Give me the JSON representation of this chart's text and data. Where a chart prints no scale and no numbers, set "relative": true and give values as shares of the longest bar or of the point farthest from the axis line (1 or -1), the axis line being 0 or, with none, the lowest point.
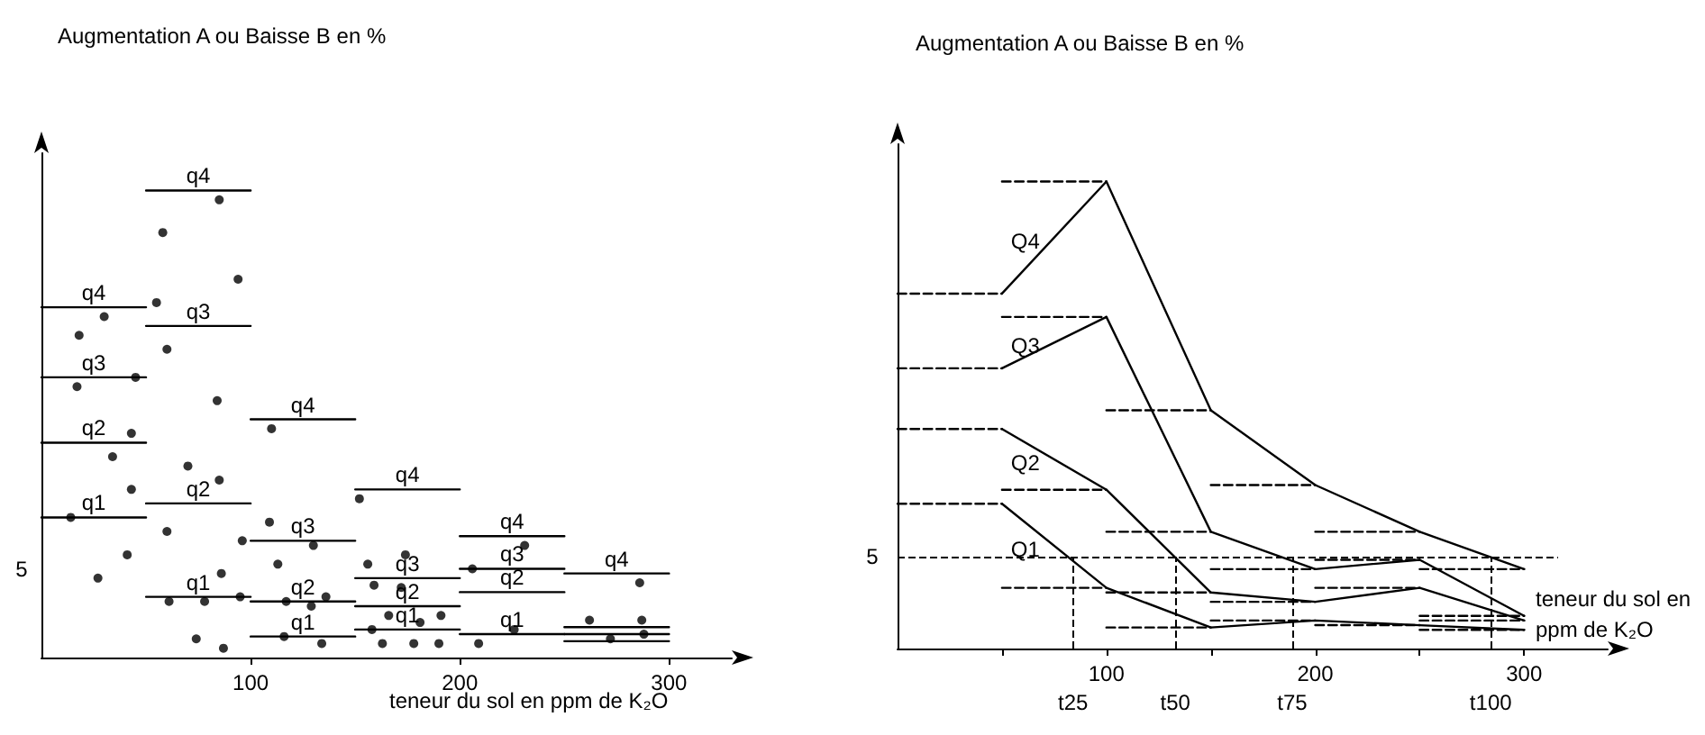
{
  "chart_data": [
    {
      "type": "line",
      "ylabel": "Augmentation A ou Baisse B en %",
      "xlabel": "teneur du sol en ppm de K₂O",
      "relative": true,
      "xlim": [
        0,
        330
      ],
      "xticks": [
        100,
        200,
        300
      ],
      "line_style": "solid",
      "marker": "none",
      "annotations": [
        "5"
      ],
      "series": [
        {
          "name": "q1",
          "color": "#000000",
          "x": [
            0,
            50,
            50,
            100,
            100,
            150,
            150,
            200,
            200,
            250,
            250,
            300
          ],
          "values": [
            0.3,
            0.3,
            0.13,
            0.13,
            0.045,
            0.045,
            0.06,
            0.06,
            0.05,
            0.05,
            0.035,
            0.035
          ]
        },
        {
          "name": "q2",
          "color": "#000000",
          "x": [
            0,
            50,
            50,
            100,
            100,
            150,
            150,
            200,
            200,
            250,
            250,
            300
          ],
          "values": [
            0.46,
            0.46,
            0.33,
            0.33,
            0.12,
            0.12,
            0.11,
            0.11,
            0.14,
            0.14,
            0.05,
            0.05
          ]
        },
        {
          "name": "q3",
          "color": "#000000",
          "x": [
            0,
            50,
            50,
            100,
            100,
            150,
            150,
            200,
            200,
            250,
            250,
            300
          ],
          "values": [
            0.6,
            0.6,
            0.71,
            0.71,
            0.25,
            0.25,
            0.17,
            0.17,
            0.19,
            0.19,
            0.065,
            0.065
          ]
        },
        {
          "name": "q4",
          "color": "#000000",
          "x": [
            0,
            50,
            50,
            100,
            100,
            150,
            150,
            200,
            200,
            250,
            250,
            300
          ],
          "values": [
            0.75,
            0.75,
            1.0,
            1.0,
            0.51,
            0.51,
            0.36,
            0.36,
            0.26,
            0.26,
            0.18,
            0.18
          ]
        },
        {
          "type": "scatter",
          "color": "#000000",
          "marker": "circle",
          "x": [
            85,
            58,
            94,
            55,
            30,
            18,
            60,
            45,
            17,
            84,
            110,
            43,
            34,
            70,
            85,
            43,
            152,
            109,
            60,
            14,
            130,
            96,
            231,
            41,
            156,
            174,
            113,
            206,
            27,
            86,
            286,
            159,
            172,
            136,
            95,
            61,
            78,
            117,
            129,
            166,
            181,
            191,
            262,
            287,
            158,
            226,
            116,
            74,
            134,
            163,
            178,
            190,
            209,
            87,
            272,
            288
          ],
          "values": [
            0.98,
            0.91,
            0.81,
            0.76,
            0.73,
            0.69,
            0.66,
            0.6,
            0.58,
            0.55,
            0.49,
            0.48,
            0.43,
            0.41,
            0.38,
            0.36,
            0.34,
            0.29,
            0.27,
            0.3,
            0.24,
            0.25,
            0.24,
            0.22,
            0.2,
            0.22,
            0.2,
            0.19,
            0.17,
            0.18,
            0.16,
            0.155,
            0.15,
            0.13,
            0.13,
            0.12,
            0.12,
            0.12,
            0.11,
            0.09,
            0.075,
            0.09,
            0.08,
            0.08,
            0.06,
            0.06,
            0.045,
            0.04,
            0.03,
            0.03,
            0.03,
            0.03,
            0.03,
            0.02,
            0.04,
            0.05
          ]
        }
      ]
    },
    {
      "type": "line",
      "ylabel": "Augmentation A ou Baisse B en %",
      "xlabel": "teneur du sol en ppm de K₂O",
      "relative": true,
      "xlim": [
        0,
        340
      ],
      "xticks": [
        {
          "value": 50,
          "label": null
        },
        100,
        {
          "value": 150,
          "label": null
        },
        200,
        {
          "value": 250,
          "label": null
        },
        300
      ],
      "line_style": "solid",
      "marker": "none",
      "annotations": [
        "5"
      ],
      "ref_lines": [
        {
          "axis": "y",
          "value": 0.196,
          "line_style": "dashed"
        },
        {
          "axis": "x",
          "value": 84,
          "label": "t25",
          "line_style": "dashed"
        },
        {
          "axis": "x",
          "value": 133,
          "label": "t50",
          "line_style": "dashed"
        },
        {
          "axis": "x",
          "value": 189,
          "label": "t75",
          "line_style": "dashed"
        },
        {
          "axis": "x",
          "value": 284,
          "label": "t100",
          "line_style": "dashed"
        }
      ],
      "series": [
        {
          "name": "Q1",
          "color": "#000000",
          "x": [
            50,
            100,
            150,
            200,
            250,
            300
          ],
          "values": [
            0.31,
            0.13,
            0.045,
            0.06,
            0.05,
            0.04
          ]
        },
        {
          "name": "Q2",
          "color": "#000000",
          "x": [
            50,
            100,
            150,
            200,
            250,
            300
          ],
          "values": [
            0.47,
            0.34,
            0.12,
            0.1,
            0.13,
            0.06
          ]
        },
        {
          "name": "Q3",
          "color": "#000000",
          "x": [
            50,
            100,
            150,
            200,
            250,
            300
          ],
          "values": [
            0.6,
            0.71,
            0.25,
            0.17,
            0.19,
            0.07
          ]
        },
        {
          "name": "Q4",
          "color": "#000000",
          "x": [
            50,
            100,
            150,
            200,
            250,
            300
          ],
          "values": [
            0.76,
            1.0,
            0.51,
            0.35,
            0.25,
            0.17
          ]
        },
        {
          "color": "#000000",
          "line_style": "dashed",
          "x": [
            0,
            50,
            50,
            100,
            100,
            150,
            150,
            200,
            200,
            250,
            250,
            300
          ],
          "values": [
            0.31,
            0.31,
            0.13,
            0.13,
            0.045,
            0.045,
            0.06,
            0.06,
            0.05,
            0.05,
            0.04,
            0.04
          ]
        },
        {
          "color": "#000000",
          "line_style": "dashed",
          "x": [
            0,
            50,
            50,
            100,
            100,
            150,
            150,
            200,
            200,
            250,
            250,
            300
          ],
          "values": [
            0.47,
            0.47,
            0.34,
            0.34,
            0.12,
            0.12,
            0.1,
            0.1,
            0.13,
            0.13,
            0.06,
            0.06
          ]
        },
        {
          "color": "#000000",
          "line_style": "dashed",
          "x": [
            0,
            50,
            50,
            100,
            100,
            150,
            150,
            200,
            200,
            250,
            250,
            300
          ],
          "values": [
            0.6,
            0.6,
            0.71,
            0.71,
            0.25,
            0.25,
            0.17,
            0.17,
            0.19,
            0.19,
            0.07,
            0.07
          ]
        },
        {
          "color": "#000000",
          "line_style": "dashed",
          "x": [
            0,
            50,
            50,
            100,
            100,
            150,
            150,
            200,
            200,
            250,
            250,
            300
          ],
          "values": [
            0.76,
            0.76,
            1.0,
            1.0,
            0.51,
            0.51,
            0.35,
            0.35,
            0.25,
            0.25,
            0.17,
            0.17
          ]
        }
      ]
    }
  ]
}
